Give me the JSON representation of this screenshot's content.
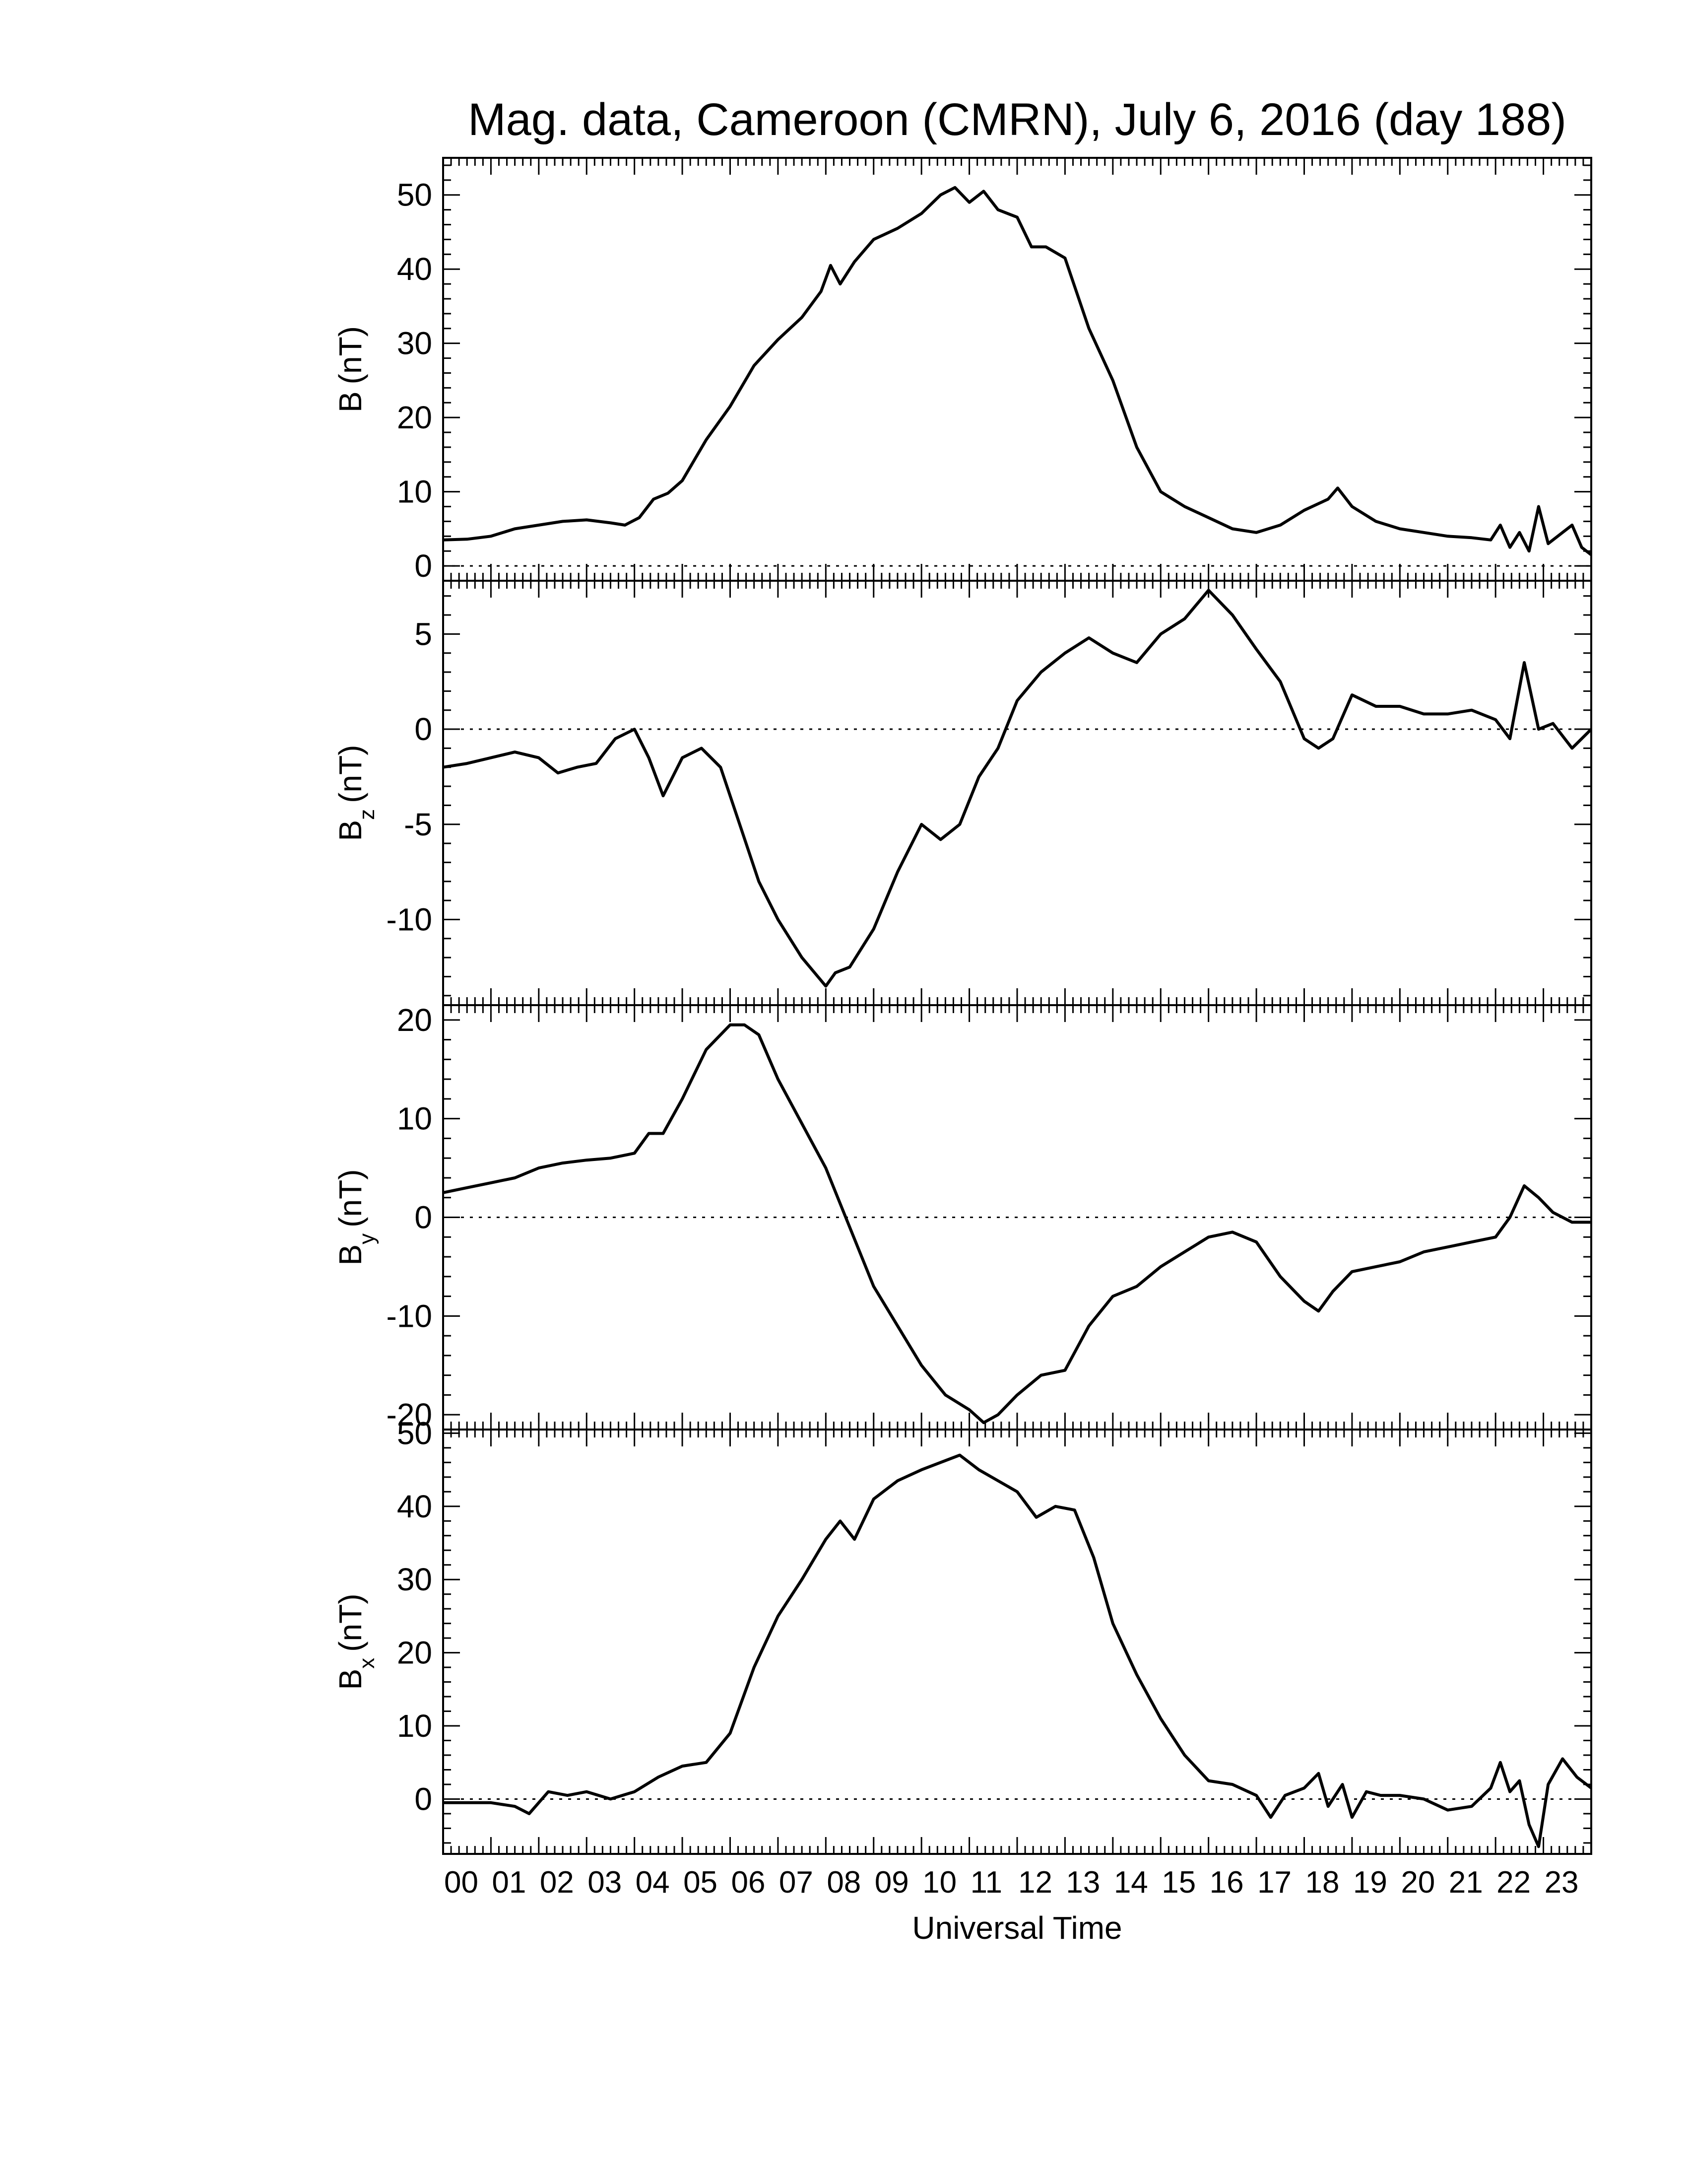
{
  "chart_data": [
    {
      "type": "line",
      "title": "Mag. data, Cameroon (CMRN), July 6, 2016 (day 188)",
      "ylabel": "B (nT)",
      "ylabel_main": "B",
      "ylabel_sub": "",
      "ylabel_unit": "(nT)",
      "ylim": [
        -2,
        55
      ],
      "yticks": [
        0,
        10,
        20,
        30,
        40,
        50
      ],
      "zero_line": true,
      "x": [
        0.0,
        0.5,
        1.0,
        1.5,
        2.0,
        2.5,
        3.0,
        3.5,
        3.8,
        4.1,
        4.4,
        4.7,
        5.0,
        5.5,
        6.0,
        6.5,
        7.0,
        7.5,
        7.9,
        8.1,
        8.3,
        8.6,
        9.0,
        9.5,
        10.0,
        10.4,
        10.7,
        11.0,
        11.3,
        11.6,
        12.0,
        12.3,
        12.6,
        13.0,
        13.5,
        14.0,
        14.5,
        15.0,
        15.5,
        16.0,
        16.5,
        17.0,
        17.5,
        18.0,
        18.5,
        18.7,
        19.0,
        19.5,
        20.0,
        20.5,
        21.0,
        21.5,
        21.9,
        22.1,
        22.3,
        22.5,
        22.7,
        22.9,
        23.1,
        23.4,
        23.6,
        23.8,
        24.0
      ],
      "values": [
        3.5,
        3.6,
        4.0,
        5.0,
        5.5,
        6.0,
        6.2,
        5.8,
        5.5,
        6.5,
        9.0,
        9.8,
        11.5,
        17.0,
        21.5,
        27.0,
        30.5,
        33.5,
        37.0,
        40.5,
        38.0,
        41.0,
        44.0,
        45.5,
        47.5,
        50.0,
        51.0,
        49.0,
        50.5,
        48.0,
        47.0,
        43.0,
        43.0,
        41.5,
        32.0,
        25.0,
        16.0,
        10.0,
        8.0,
        6.5,
        5.0,
        4.5,
        5.5,
        7.5,
        9.0,
        10.5,
        8.0,
        6.0,
        5.0,
        4.5,
        4.0,
        3.8,
        3.5,
        5.5,
        2.5,
        4.5,
        2.0,
        8.0,
        3.0,
        4.5,
        5.5,
        2.5,
        1.5
      ]
    },
    {
      "type": "line",
      "title": "",
      "ylabel": "Bz (nT)",
      "ylabel_main": "B",
      "ylabel_sub": "z",
      "ylabel_unit": "(nT)",
      "ylim": [
        -14.5,
        7.8
      ],
      "yticks": [
        5,
        0,
        -5,
        -10
      ],
      "zero_line": true,
      "x": [
        0.0,
        0.5,
        1.0,
        1.5,
        2.0,
        2.4,
        2.8,
        3.2,
        3.6,
        4.0,
        4.3,
        4.6,
        5.0,
        5.4,
        5.8,
        6.2,
        6.6,
        7.0,
        7.5,
        8.0,
        8.2,
        8.5,
        9.0,
        9.5,
        10.0,
        10.4,
        10.8,
        11.2,
        11.6,
        12.0,
        12.5,
        13.0,
        13.5,
        14.0,
        14.5,
        15.0,
        15.5,
        16.0,
        16.5,
        17.0,
        17.5,
        18.0,
        18.3,
        18.6,
        19.0,
        19.5,
        20.0,
        20.5,
        21.0,
        21.5,
        22.0,
        22.3,
        22.6,
        22.9,
        23.2,
        23.6,
        24.0
      ],
      "values": [
        -2.0,
        -1.8,
        -1.5,
        -1.2,
        -1.5,
        -2.3,
        -2.0,
        -1.8,
        -0.5,
        0.0,
        -1.5,
        -3.5,
        -1.5,
        -1.0,
        -2.0,
        -5.0,
        -8.0,
        -10.0,
        -12.0,
        -13.5,
        -12.8,
        -12.5,
        -10.5,
        -7.5,
        -5.0,
        -5.8,
        -5.0,
        -2.5,
        -1.0,
        1.5,
        3.0,
        4.0,
        4.8,
        4.0,
        3.5,
        5.0,
        5.8,
        7.3,
        6.0,
        4.2,
        2.5,
        -0.5,
        -1.0,
        -0.5,
        1.8,
        1.2,
        1.2,
        0.8,
        0.8,
        1.0,
        0.5,
        -0.5,
        3.5,
        0.0,
        0.3,
        -1.0,
        0.0
      ]
    },
    {
      "type": "line",
      "title": "",
      "ylabel": "By (nT)",
      "ylabel_main": "B",
      "ylabel_sub": "y",
      "ylabel_unit": "(nT)",
      "ylim": [
        -21.5,
        21.5
      ],
      "yticks": [
        20,
        10,
        0,
        -10,
        -20
      ],
      "zero_line": true,
      "x": [
        0.0,
        0.5,
        1.0,
        1.5,
        2.0,
        2.5,
        3.0,
        3.5,
        4.0,
        4.3,
        4.6,
        5.0,
        5.5,
        6.0,
        6.3,
        6.6,
        7.0,
        7.5,
        8.0,
        8.5,
        9.0,
        9.5,
        10.0,
        10.5,
        11.0,
        11.3,
        11.6,
        12.0,
        12.5,
        13.0,
        13.5,
        14.0,
        14.5,
        15.0,
        15.5,
        16.0,
        16.5,
        17.0,
        17.5,
        18.0,
        18.3,
        18.6,
        19.0,
        19.5,
        20.0,
        20.5,
        21.0,
        21.5,
        22.0,
        22.3,
        22.6,
        22.9,
        23.2,
        23.6,
        24.0
      ],
      "values": [
        2.5,
        3.0,
        3.5,
        4.0,
        5.0,
        5.5,
        5.8,
        6.0,
        6.5,
        8.5,
        8.5,
        12.0,
        17.0,
        19.5,
        19.5,
        18.5,
        14.0,
        9.5,
        5.0,
        -1.0,
        -7.0,
        -11.0,
        -15.0,
        -18.0,
        -19.5,
        -20.8,
        -20.0,
        -18.0,
        -16.0,
        -15.5,
        -11.0,
        -8.0,
        -7.0,
        -5.0,
        -3.5,
        -2.0,
        -1.5,
        -2.5,
        -6.0,
        -8.5,
        -9.5,
        -7.5,
        -5.5,
        -5.0,
        -4.5,
        -3.5,
        -3.0,
        -2.5,
        -2.0,
        0.0,
        3.2,
        2.0,
        0.5,
        -0.5,
        -0.5
      ]
    },
    {
      "type": "line",
      "title": "",
      "ylabel": "Bx (nT)",
      "ylabel_main": "B",
      "ylabel_sub": "x",
      "ylabel_unit": "(nT)",
      "ylim": [
        -7.5,
        50.5
      ],
      "yticks": [
        50,
        40,
        30,
        20,
        10,
        0
      ],
      "zero_line": true,
      "x": [
        0.0,
        0.5,
        1.0,
        1.5,
        1.8,
        2.2,
        2.6,
        3.0,
        3.5,
        4.0,
        4.5,
        5.0,
        5.5,
        6.0,
        6.5,
        7.0,
        7.5,
        8.0,
        8.3,
        8.6,
        9.0,
        9.5,
        10.0,
        10.4,
        10.8,
        11.2,
        11.6,
        12.0,
        12.4,
        12.8,
        13.2,
        13.6,
        14.0,
        14.5,
        15.0,
        15.5,
        16.0,
        16.5,
        17.0,
        17.3,
        17.6,
        18.0,
        18.3,
        18.5,
        18.8,
        19.0,
        19.3,
        19.6,
        20.0,
        20.5,
        21.0,
        21.5,
        21.9,
        22.1,
        22.3,
        22.5,
        22.7,
        22.9,
        23.1,
        23.4,
        23.7,
        24.0
      ],
      "values": [
        -0.5,
        -0.5,
        -0.5,
        -1.0,
        -2.0,
        1.0,
        0.5,
        1.0,
        0.0,
        1.0,
        3.0,
        4.5,
        5.0,
        9.0,
        18.0,
        25.0,
        30.0,
        35.5,
        38.0,
        35.5,
        41.0,
        43.5,
        45.0,
        46.0,
        47.0,
        45.0,
        43.5,
        42.0,
        38.5,
        40.0,
        39.5,
        33.0,
        24.0,
        17.0,
        11.0,
        6.0,
        2.5,
        2.0,
        0.5,
        -2.5,
        0.5,
        1.5,
        3.5,
        -1.0,
        2.0,
        -2.5,
        1.0,
        0.5,
        0.5,
        0.0,
        -1.5,
        -1.0,
        1.5,
        5.0,
        1.0,
        2.5,
        -3.5,
        -6.5,
        2.0,
        5.5,
        3.0,
        1.5
      ]
    }
  ],
  "xaxis": {
    "label": "Universal Time",
    "ticks": [
      "00",
      "01",
      "02",
      "03",
      "04",
      "05",
      "06",
      "07",
      "08",
      "09",
      "10",
      "11",
      "12",
      "13",
      "14",
      "15",
      "16",
      "17",
      "18",
      "19",
      "20",
      "21",
      "22",
      "23"
    ],
    "range_hours": [
      0,
      24
    ]
  }
}
